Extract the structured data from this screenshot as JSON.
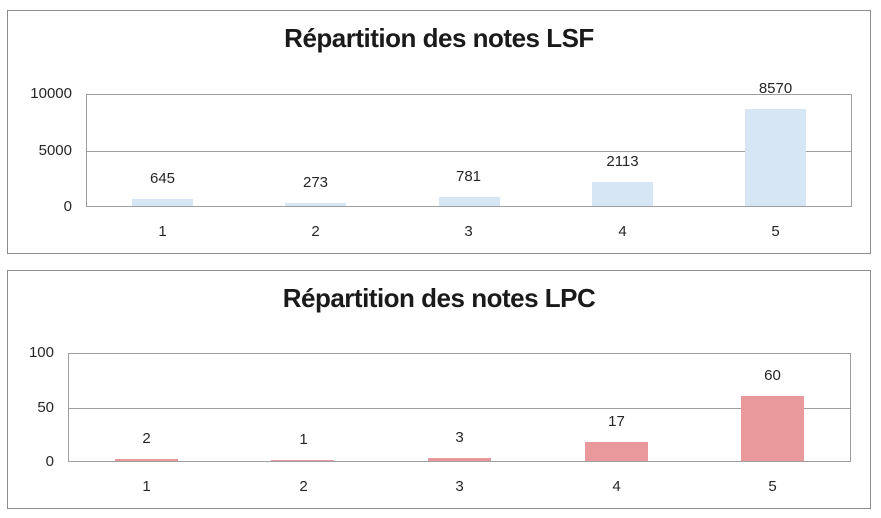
{
  "page": {
    "background": "#FFFFFF"
  },
  "styles": {
    "frame_border": "#8C8C8C",
    "grid_color": "#9E9E9E",
    "title_color": "#1A1A1A",
    "label_color": "#262626"
  },
  "chart_data": [
    {
      "type": "bar",
      "title": "Répartition des notes LSF",
      "categories": [
        "1",
        "2",
        "3",
        "4",
        "5"
      ],
      "values": [
        645,
        273,
        781,
        2113,
        8570
      ],
      "data_labels": [
        "645",
        "273",
        "781",
        "2113",
        "8570"
      ],
      "ylim": [
        0,
        10000
      ],
      "yticks": [
        0,
        5000,
        10000
      ],
      "ytick_labels": [
        "0",
        "5000",
        "10000"
      ],
      "bar_color": "#D6E6F5",
      "grid": true,
      "legend": "none",
      "xlabel": "",
      "ylabel": ""
    },
    {
      "type": "bar",
      "title": "Répartition des notes LPC",
      "categories": [
        "1",
        "2",
        "3",
        "4",
        "5"
      ],
      "values": [
        2,
        1,
        3,
        17,
        60
      ],
      "data_labels": [
        "2",
        "1",
        "3",
        "17",
        "60"
      ],
      "ylim": [
        0,
        100
      ],
      "yticks": [
        0,
        50,
        100
      ],
      "ytick_labels": [
        "0",
        "50",
        "100"
      ],
      "bar_color": "#E9999C",
      "grid": true,
      "legend": "none",
      "xlabel": "",
      "ylabel": ""
    }
  ]
}
